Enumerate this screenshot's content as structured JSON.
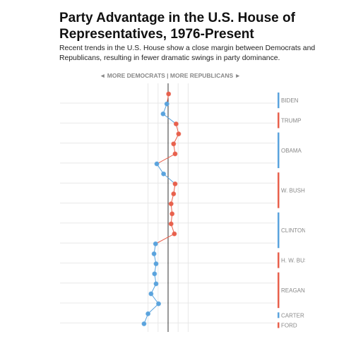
{
  "title_lines": [
    "Party Advantage in the U.S. House of",
    "Representatives, 1976-Present"
  ],
  "subtitle_lines": [
    "Recent trends in the U.S. House show a close margin between Democrats and",
    "Republicans, resulting in fewer dramatic swings in party dominance."
  ],
  "colors": {
    "democrat": "#5aa3dd",
    "republican": "#e8604c",
    "zero_line": "#333333",
    "grid": "#e8e8e8",
    "label": "#888888"
  },
  "chart_data": {
    "type": "line",
    "title": "Party Advantage in the U.S. House of Representatives, 1976-Present",
    "subtitle": "Recent trends in the U.S. House show a close margin between Democrats and Republicans, resulting in fewer dramatic swings in party dominance.",
    "direction_label": "◄ MORE DEMOCRATS | MORE REPUBLICANS ►",
    "x_label": "",
    "y_label": "",
    "xlim": [
      -10,
      10
    ],
    "grid": true,
    "legend": "none",
    "series": [
      {
        "values": [
          0.2,
          -0.5,
          -2.0,
          3.2,
          4.2,
          2.2,
          2.8,
          -4.5,
          -1.8,
          2.8,
          2.2,
          1.2,
          1.6,
          1.2,
          2.5,
          -5.0,
          -5.6,
          -4.8,
          -5.4,
          -4.8,
          -6.8,
          -3.8,
          -8.0,
          -9.6
        ]
      }
    ],
    "presidents": [
      {
        "name": "BIDEN",
        "party": "D",
        "first": 0,
        "last": 1
      },
      {
        "name": "TRUMP",
        "party": "R",
        "first": 2,
        "last": 3
      },
      {
        "name": "OBAMA",
        "party": "D",
        "first": 4,
        "last": 7
      },
      {
        "name": "W. BUSH",
        "party": "R",
        "first": 8,
        "last": 11
      },
      {
        "name": "CLINTON",
        "party": "D",
        "first": 12,
        "last": 15
      },
      {
        "name": "H. W. BUSH",
        "party": "R",
        "first": 16,
        "last": 17
      },
      {
        "name": "REAGAN",
        "party": "R",
        "first": 18,
        "last": 21
      },
      {
        "name": "CARTER",
        "party": "D",
        "first": 22,
        "last": 22
      },
      {
        "name": "FORD",
        "party": "R",
        "first": 23,
        "last": 23
      }
    ]
  }
}
